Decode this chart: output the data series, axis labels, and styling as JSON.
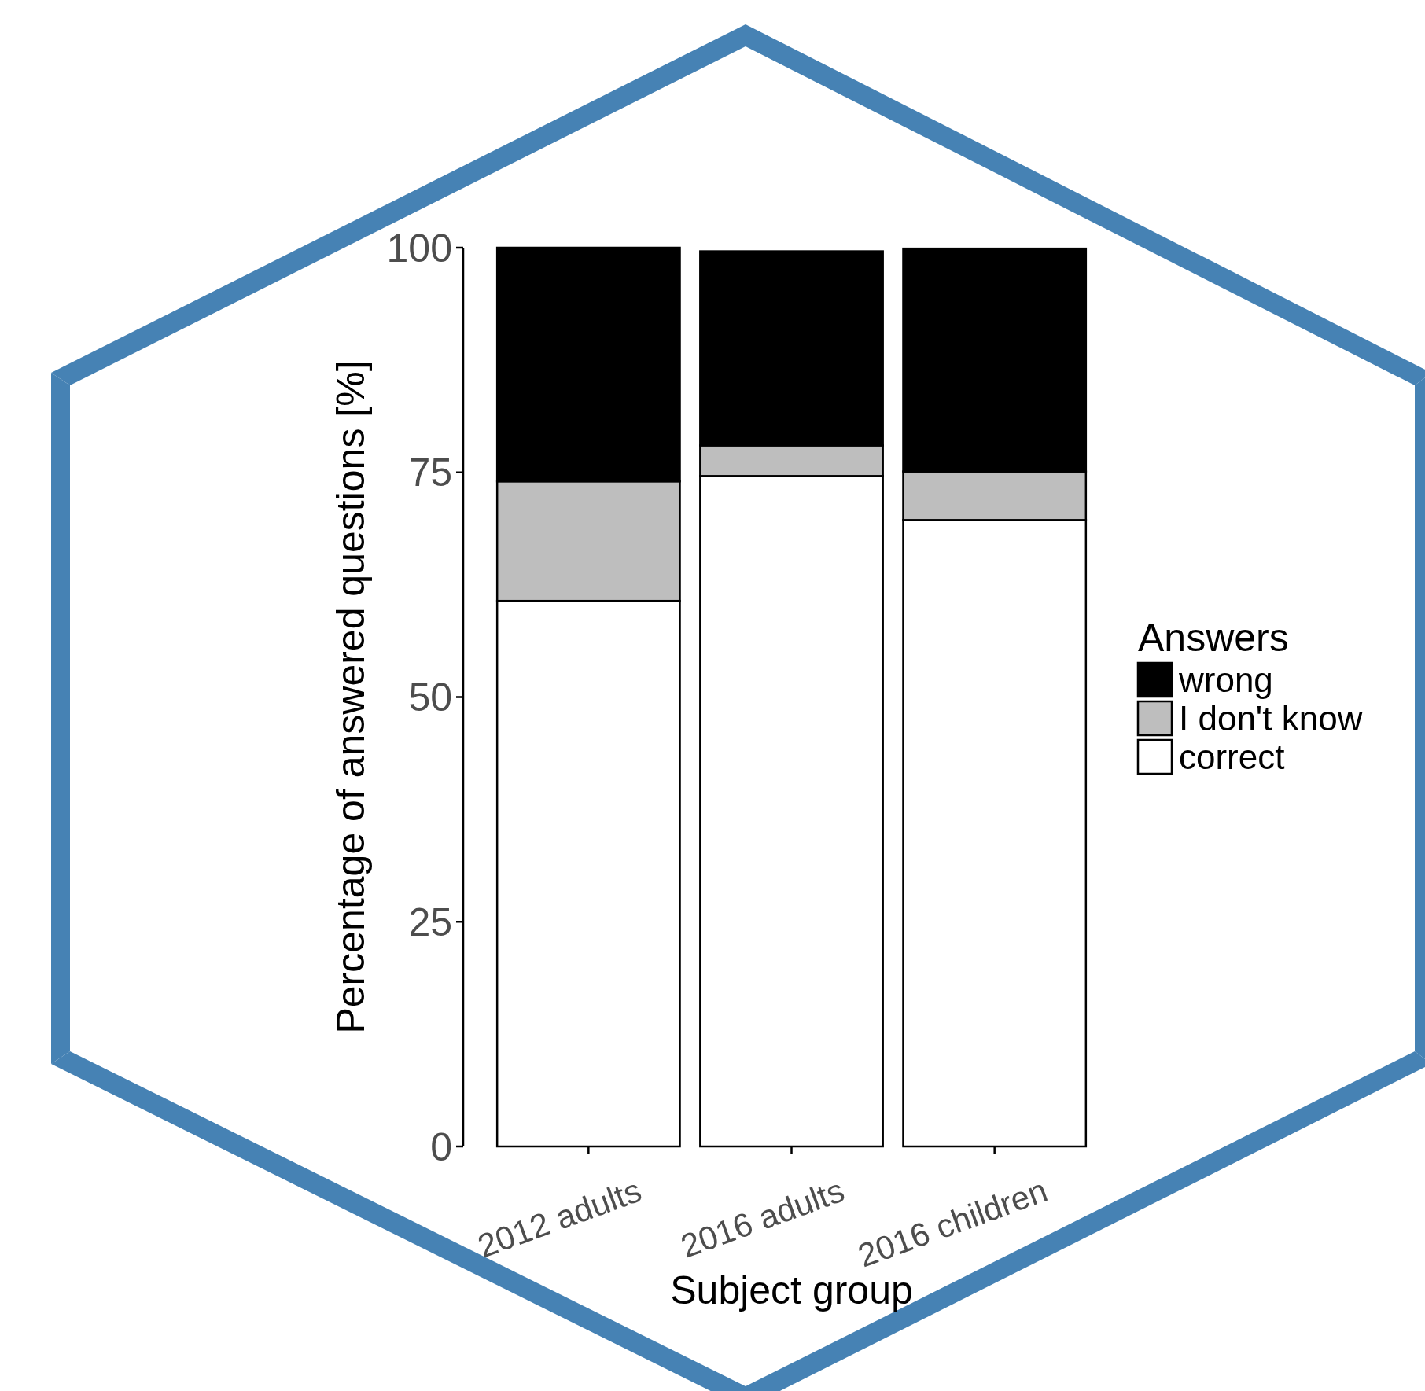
{
  "chart_data": {
    "type": "bar",
    "stacked": true,
    "xlabel": "Subject group",
    "ylabel": "Percentage of answered questions [%]",
    "legend_title": "Answers",
    "legend": "right",
    "categories": [
      "2012 adults",
      "2016 adults",
      "2016 children"
    ],
    "ylim": [
      0,
      100
    ],
    "yticks": [
      0,
      25,
      50,
      75,
      100
    ],
    "grid": false,
    "series": [
      {
        "name": "correct",
        "color": "#ffffff",
        "values": [
          60.7,
          74.6,
          69.7
        ]
      },
      {
        "name": "I don't know",
        "color": "#bebebe",
        "values": [
          13.3,
          3.4,
          5.4
        ]
      },
      {
        "name": "wrong",
        "color": "#000000",
        "values": [
          26.0,
          21.6,
          24.8
        ]
      }
    ]
  }
}
